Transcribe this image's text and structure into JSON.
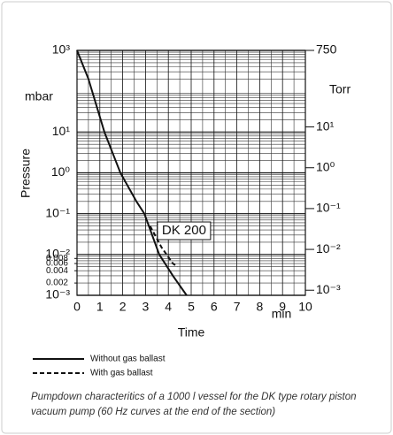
{
  "chart_data": {
    "type": "line",
    "log_scale": true,
    "x_label": "Time",
    "x_unit": "min",
    "y_label": "Pressure",
    "y_unit": "mbar",
    "y2_unit": "Torr",
    "annotation": "DK 200",
    "xlim": [
      0,
      10
    ],
    "xticks": [
      0,
      1,
      2,
      3,
      4,
      5,
      6,
      7,
      8,
      9,
      10
    ],
    "ylim": [
      0.001,
      1000
    ],
    "yticks": [
      {
        "value": 1000,
        "label": "10³"
      },
      {
        "value": 10,
        "label": "10¹"
      },
      {
        "value": 1,
        "label": "10⁰"
      },
      {
        "value": 0.1,
        "label": "10⁻¹"
      },
      {
        "value": 0.01,
        "label": "10⁻²"
      },
      {
        "value": 0.001,
        "label": "10⁻³"
      }
    ],
    "yminor_ticks": [
      0.008,
      0.006,
      0.004,
      0.002
    ],
    "y2lim": [
      0.00075,
      750
    ],
    "y2ticks": [
      750,
      {
        "value": 10,
        "label": "10¹"
      },
      {
        "value": 1,
        "label": "10⁰"
      },
      {
        "value": 0.1,
        "label": "10⁻¹"
      },
      {
        "value": 0.01,
        "label": "10⁻²"
      },
      {
        "value": 0.001,
        "label": "10⁻³"
      }
    ],
    "grid": true,
    "series": [
      {
        "name": "Without gas ballast",
        "color": "#111111",
        "style": "solid",
        "x": [
          0,
          0.5,
          1.2,
          1.9,
          2.6,
          2.95,
          3.6,
          4.2,
          4.8
        ],
        "values": [
          1000,
          200,
          10,
          1,
          0.2,
          0.1,
          0.01,
          0.003,
          0.001
        ]
      },
      {
        "name": "With gas ballast",
        "color": "#111111",
        "style": "dashed",
        "x": [
          3.2,
          3.7,
          4.2,
          4.4
        ],
        "values": [
          0.05,
          0.015,
          0.006,
          0.005
        ]
      }
    ],
    "caption": [
      "Pumpdown characteritics of a 1000 l vessel for the DK type rotary piston",
      "vacuum pump (60 Hz curves at the end of the section)"
    ]
  }
}
